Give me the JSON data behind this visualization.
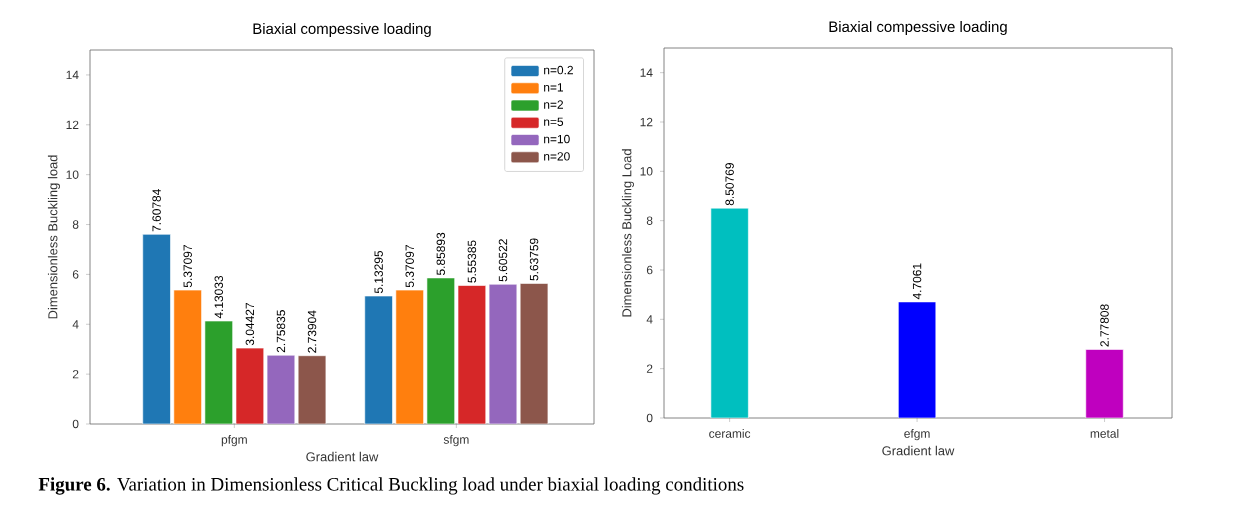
{
  "chart_data": [
    {
      "type": "bar",
      "title": "Biaxial compessive loading",
      "xlabel": "Gradient law",
      "ylabel": "Dimensionless Buckling load",
      "categories": [
        "pfgm",
        "sfgm"
      ],
      "series": [
        {
          "name": "n=0.2",
          "color": "#1f77b4",
          "values": [
            7.60784,
            5.13295
          ]
        },
        {
          "name": "n=1",
          "color": "#ff7f0e",
          "values": [
            5.37097,
            5.37097
          ]
        },
        {
          "name": "n=2",
          "color": "#2ca02c",
          "values": [
            4.13033,
            5.85893
          ]
        },
        {
          "name": "n=5",
          "color": "#d62728",
          "values": [
            3.04427,
            5.55385
          ]
        },
        {
          "name": "n=10",
          "color": "#9467bd",
          "values": [
            2.75835,
            5.60522
          ]
        },
        {
          "name": "n=20",
          "color": "#8c564b",
          "values": [
            2.73904,
            5.63759
          ]
        }
      ],
      "ylim": [
        0,
        15
      ],
      "yticks": [
        0,
        2,
        4,
        6,
        8,
        10,
        12,
        14
      ],
      "data_labels": true,
      "legend": "top right",
      "annotations": [
        "**Figure 6.** Variation in Dimensionless Critical Buckling load under biaxial loading conditions"
      ]
    },
    {
      "type": "bar",
      "title": "Biaxial compessive loading",
      "xlabel": "Gradient law",
      "ylabel": "Dimensionless Buckling Load",
      "categories": [
        "ceramic",
        "efgm",
        "metal"
      ],
      "values": [
        8.50769,
        4.7061,
        2.77808
      ],
      "colors": [
        "#00bfbf",
        "#0000ff",
        "#bf00bf"
      ],
      "ylim": [
        0,
        15
      ],
      "yticks": [
        0,
        2,
        4,
        6,
        8,
        10,
        12,
        14
      ],
      "data_labels": true
    }
  ]
}
